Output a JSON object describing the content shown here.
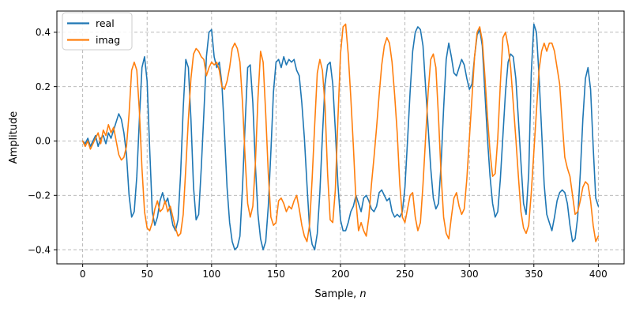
{
  "chart_data": {
    "type": "line",
    "title": "",
    "xlabel": "Sample, n",
    "xlabel_prefix": "Sample, ",
    "xlabel_var": "n",
    "ylabel": "Amplitude",
    "xlim": [
      -20,
      420
    ],
    "ylim": [
      -0.452,
      0.478
    ],
    "xticks": [
      0,
      50,
      100,
      150,
      200,
      250,
      300,
      350,
      400
    ],
    "yticks": [
      -0.4,
      -0.2,
      0.0,
      0.2,
      0.4
    ],
    "grid": true,
    "grid_style": "dashed",
    "grid_color": "#b0b0b0",
    "spine_color": "#000000",
    "legend_position": "upper left",
    "x_start": 0,
    "x_step": 2,
    "series": [
      {
        "name": "real",
        "color": "#1f77b4",
        "values": [
          0.0,
          -0.01,
          0.01,
          -0.02,
          0.0,
          0.02,
          -0.02,
          0.01,
          0.02,
          -0.01,
          0.03,
          0.01,
          0.04,
          0.07,
          0.1,
          0.08,
          0.03,
          -0.05,
          -0.2,
          -0.28,
          -0.26,
          -0.13,
          0.08,
          0.27,
          0.31,
          0.22,
          -0.03,
          -0.26,
          -0.31,
          -0.28,
          -0.22,
          -0.19,
          -0.23,
          -0.21,
          -0.26,
          -0.31,
          -0.33,
          -0.29,
          -0.12,
          0.12,
          0.3,
          0.27,
          0.08,
          -0.17,
          -0.29,
          -0.27,
          -0.1,
          0.1,
          0.31,
          0.4,
          0.41,
          0.31,
          0.27,
          0.29,
          0.21,
          0.03,
          -0.17,
          -0.3,
          -0.37,
          -0.4,
          -0.39,
          -0.35,
          -0.17,
          0.06,
          0.27,
          0.28,
          0.14,
          -0.09,
          -0.27,
          -0.36,
          -0.4,
          -0.37,
          -0.24,
          -0.04,
          0.18,
          0.29,
          0.3,
          0.27,
          0.31,
          0.28,
          0.3,
          0.29,
          0.3,
          0.26,
          0.24,
          0.14,
          0.01,
          -0.16,
          -0.32,
          -0.38,
          -0.4,
          -0.34,
          -0.19,
          0.02,
          0.21,
          0.28,
          0.29,
          0.21,
          0.04,
          -0.16,
          -0.29,
          -0.33,
          -0.33,
          -0.3,
          -0.26,
          -0.24,
          -0.2,
          -0.23,
          -0.26,
          -0.21,
          -0.2,
          -0.22,
          -0.25,
          -0.26,
          -0.24,
          -0.19,
          -0.18,
          -0.2,
          -0.22,
          -0.21,
          -0.26,
          -0.28,
          -0.27,
          -0.28,
          -0.26,
          -0.17,
          0.0,
          0.18,
          0.33,
          0.4,
          0.42,
          0.41,
          0.35,
          0.2,
          0.05,
          -0.1,
          -0.21,
          -0.25,
          -0.23,
          -0.09,
          0.12,
          0.3,
          0.36,
          0.31,
          0.25,
          0.24,
          0.27,
          0.3,
          0.28,
          0.23,
          0.19,
          0.21,
          0.31,
          0.39,
          0.41,
          0.35,
          0.18,
          0.01,
          -0.13,
          -0.23,
          -0.28,
          -0.26,
          -0.14,
          0.02,
          0.18,
          0.29,
          0.32,
          0.31,
          0.23,
          0.08,
          -0.08,
          -0.23,
          -0.27,
          -0.12,
          0.25,
          0.43,
          0.4,
          0.24,
          0.04,
          -0.16,
          -0.27,
          -0.3,
          -0.33,
          -0.28,
          -0.22,
          -0.19,
          -0.18,
          -0.19,
          -0.23,
          -0.31,
          -0.37,
          -0.36,
          -0.28,
          -0.12,
          0.08,
          0.23,
          0.27,
          0.19,
          -0.02,
          -0.21,
          -0.24
        ]
      },
      {
        "name": "imag",
        "color": "#ff7f0e",
        "values": [
          0.0,
          -0.02,
          0.0,
          -0.03,
          -0.01,
          0.01,
          0.03,
          -0.01,
          0.04,
          0.02,
          0.06,
          0.03,
          0.05,
          0.0,
          -0.05,
          -0.07,
          -0.06,
          -0.02,
          0.1,
          0.26,
          0.29,
          0.26,
          0.11,
          -0.1,
          -0.26,
          -0.32,
          -0.33,
          -0.3,
          -0.25,
          -0.22,
          -0.26,
          -0.25,
          -0.22,
          -0.26,
          -0.24,
          -0.28,
          -0.32,
          -0.35,
          -0.34,
          -0.27,
          -0.1,
          0.08,
          0.23,
          0.32,
          0.34,
          0.33,
          0.31,
          0.3,
          0.24,
          0.27,
          0.29,
          0.28,
          0.29,
          0.26,
          0.2,
          0.19,
          0.22,
          0.27,
          0.34,
          0.36,
          0.34,
          0.29,
          0.14,
          -0.06,
          -0.23,
          -0.28,
          -0.24,
          -0.08,
          0.16,
          0.33,
          0.29,
          0.1,
          -0.12,
          -0.28,
          -0.31,
          -0.3,
          -0.22,
          -0.21,
          -0.23,
          -0.26,
          -0.24,
          -0.25,
          -0.22,
          -0.2,
          -0.25,
          -0.31,
          -0.35,
          -0.37,
          -0.31,
          -0.14,
          0.06,
          0.25,
          0.3,
          0.26,
          0.13,
          -0.12,
          -0.29,
          -0.3,
          -0.18,
          0.08,
          0.32,
          0.42,
          0.43,
          0.32,
          0.16,
          -0.02,
          -0.22,
          -0.33,
          -0.3,
          -0.33,
          -0.35,
          -0.28,
          -0.16,
          -0.06,
          0.05,
          0.17,
          0.28,
          0.35,
          0.38,
          0.36,
          0.29,
          0.17,
          0.03,
          -0.16,
          -0.28,
          -0.3,
          -0.25,
          -0.2,
          -0.19,
          -0.28,
          -0.33,
          -0.3,
          -0.16,
          0.01,
          0.18,
          0.3,
          0.32,
          0.27,
          0.09,
          -0.12,
          -0.28,
          -0.34,
          -0.36,
          -0.28,
          -0.21,
          -0.19,
          -0.24,
          -0.27,
          -0.25,
          -0.14,
          0.01,
          0.16,
          0.31,
          0.4,
          0.42,
          0.37,
          0.24,
          0.09,
          -0.04,
          -0.13,
          -0.12,
          0.01,
          0.21,
          0.38,
          0.4,
          0.35,
          0.27,
          0.14,
          0.01,
          -0.13,
          -0.26,
          -0.32,
          -0.34,
          -0.31,
          -0.19,
          -0.04,
          0.11,
          0.26,
          0.33,
          0.36,
          0.33,
          0.36,
          0.36,
          0.33,
          0.27,
          0.21,
          0.07,
          -0.06,
          -0.1,
          -0.13,
          -0.2,
          -0.27,
          -0.26,
          -0.22,
          -0.17,
          -0.15,
          -0.16,
          -0.22,
          -0.31,
          -0.37,
          -0.35
        ]
      }
    ],
    "legend": [
      "real",
      "imag"
    ]
  }
}
